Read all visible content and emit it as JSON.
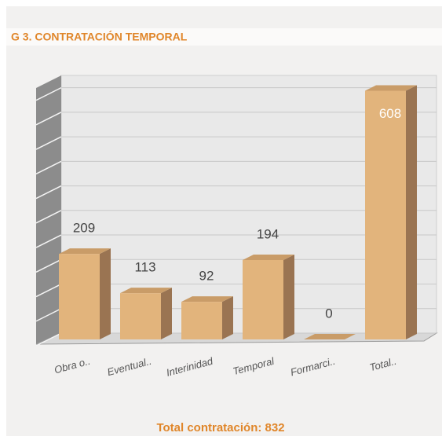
{
  "chart_data": {
    "type": "bar3d",
    "title": "G 3. CONTRATACIÓN TEMPORAL",
    "categories": [
      "Obra o..",
      "Eventual..",
      "Interinidad",
      "Temporal",
      "Formarci..",
      "Total.."
    ],
    "values": [
      209,
      113,
      92,
      194,
      0,
      608
    ],
    "color": "#e2b47c",
    "ylim": [
      0,
      630
    ],
    "yticks": [
      0,
      60,
      120,
      180,
      240,
      300,
      360,
      420,
      480,
      540,
      600
    ],
    "grid": true,
    "footer": "Total contratación: 832"
  }
}
